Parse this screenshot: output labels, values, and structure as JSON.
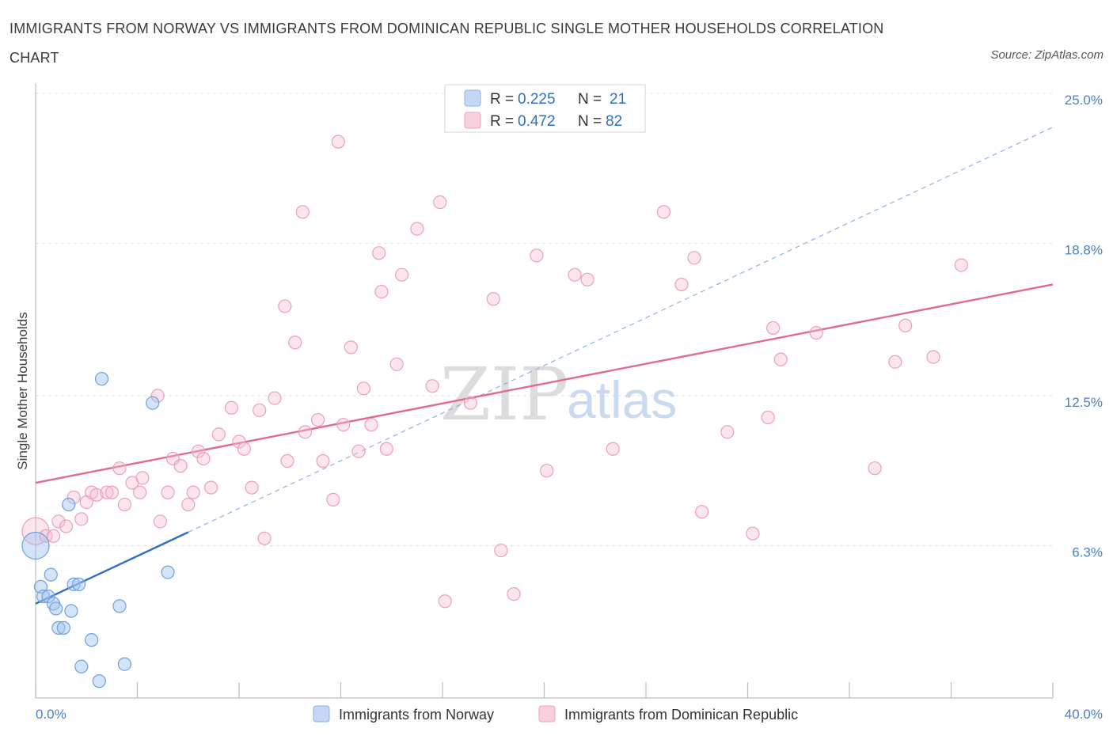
{
  "title": "IMMIGRANTS FROM NORWAY VS IMMIGRANTS FROM DOMINICAN REPUBLIC SINGLE MOTHER HOUSEHOLDS CORRELATION CHART",
  "source": "Source: ZipAtlas.com",
  "watermark": {
    "part1": "ZIP",
    "part2": "atlas"
  },
  "colors": {
    "norway": "#6f9fe0",
    "norway_line": "#2f6ec4",
    "dominican": "#f0a0b8",
    "dominican_line": "#e06a90",
    "tick": "#4a7fc6"
  },
  "legend": {
    "rows": [
      {
        "r_label": "R =",
        "r_value": "0.225",
        "n_label": "N =",
        "n_value": "21"
      },
      {
        "r_label": "R =",
        "r_value": "0.472",
        "n_label": "N =",
        "n_value": "82"
      }
    ]
  },
  "chart_data": {
    "type": "scatter",
    "title": "IMMIGRANTS FROM NORWAY VS IMMIGRANTS FROM DOMINICAN REPUBLIC SINGLE MOTHER HOUSEHOLDS CORRELATION CHART",
    "xlabel": "",
    "ylabel": "Single Mother Households",
    "xlim": [
      0,
      40
    ],
    "ylim": [
      0,
      25
    ],
    "x_tick_labels": [
      "0.0%",
      "40.0%"
    ],
    "y_ticks": [
      6.3,
      12.5,
      18.8,
      25.0
    ],
    "y_tick_labels": [
      "6.3%",
      "12.5%",
      "18.8%",
      "25.0%"
    ],
    "grid": true,
    "legend_position": "top-center",
    "series": [
      {
        "name": "Immigrants from Norway",
        "R": 0.225,
        "N": 21,
        "trend": {
          "x0": 0,
          "y0": 3.9,
          "x1": 40,
          "y1": 23.6,
          "solid_until_x": 6
        },
        "points": [
          [
            0.0,
            6.3
          ],
          [
            0.2,
            4.6
          ],
          [
            0.3,
            4.2
          ],
          [
            0.5,
            4.2
          ],
          [
            0.6,
            5.1
          ],
          [
            0.7,
            3.9
          ],
          [
            0.8,
            3.7
          ],
          [
            0.9,
            2.9
          ],
          [
            1.1,
            2.9
          ],
          [
            1.3,
            8.0
          ],
          [
            1.4,
            3.6
          ],
          [
            1.5,
            4.7
          ],
          [
            1.7,
            4.7
          ],
          [
            1.8,
            1.3
          ],
          [
            2.2,
            2.4
          ],
          [
            2.5,
            0.7
          ],
          [
            2.6,
            13.2
          ],
          [
            3.3,
            3.8
          ],
          [
            3.5,
            1.4
          ],
          [
            4.6,
            12.2
          ],
          [
            5.2,
            5.2
          ]
        ]
      },
      {
        "name": "Immigrants from Dominican Republic",
        "R": 0.472,
        "N": 82,
        "trend": {
          "x0": 0,
          "y0": 8.9,
          "x1": 40,
          "y1": 17.1
        },
        "points": [
          [
            0.0,
            6.9
          ],
          [
            0.4,
            6.7
          ],
          [
            0.7,
            6.7
          ],
          [
            0.9,
            7.3
          ],
          [
            1.2,
            7.1
          ],
          [
            1.5,
            8.3
          ],
          [
            1.8,
            7.4
          ],
          [
            2.0,
            8.1
          ],
          [
            2.2,
            8.5
          ],
          [
            2.4,
            8.4
          ],
          [
            2.8,
            8.5
          ],
          [
            3.0,
            8.5
          ],
          [
            3.3,
            9.5
          ],
          [
            3.5,
            8.0
          ],
          [
            3.8,
            8.9
          ],
          [
            4.1,
            8.5
          ],
          [
            4.2,
            9.1
          ],
          [
            4.8,
            12.5
          ],
          [
            4.9,
            7.3
          ],
          [
            5.2,
            8.5
          ],
          [
            5.4,
            9.9
          ],
          [
            5.7,
            9.6
          ],
          [
            6.0,
            8.0
          ],
          [
            6.2,
            8.5
          ],
          [
            6.4,
            10.2
          ],
          [
            6.6,
            9.9
          ],
          [
            6.9,
            8.7
          ],
          [
            7.2,
            10.9
          ],
          [
            7.7,
            12.0
          ],
          [
            8.0,
            10.6
          ],
          [
            8.2,
            10.3
          ],
          [
            8.5,
            8.7
          ],
          [
            8.8,
            11.9
          ],
          [
            9.0,
            6.6
          ],
          [
            9.4,
            12.4
          ],
          [
            9.8,
            16.2
          ],
          [
            9.9,
            9.8
          ],
          [
            10.2,
            14.7
          ],
          [
            10.6,
            11.0
          ],
          [
            10.5,
            20.1
          ],
          [
            11.1,
            11.5
          ],
          [
            11.3,
            9.8
          ],
          [
            11.7,
            8.2
          ],
          [
            11.9,
            23.0
          ],
          [
            12.1,
            11.3
          ],
          [
            12.4,
            14.5
          ],
          [
            12.7,
            10.2
          ],
          [
            12.9,
            12.8
          ],
          [
            13.2,
            11.3
          ],
          [
            13.5,
            18.4
          ],
          [
            13.6,
            16.8
          ],
          [
            13.8,
            10.3
          ],
          [
            14.2,
            13.8
          ],
          [
            14.4,
            17.5
          ],
          [
            15.0,
            19.4
          ],
          [
            15.6,
            12.9
          ],
          [
            15.9,
            20.5
          ],
          [
            16.1,
            4.0
          ],
          [
            17.1,
            12.2
          ],
          [
            18.0,
            16.5
          ],
          [
            18.3,
            6.1
          ],
          [
            18.8,
            4.3
          ],
          [
            19.7,
            18.3
          ],
          [
            20.1,
            9.4
          ],
          [
            21.2,
            17.5
          ],
          [
            21.7,
            17.3
          ],
          [
            22.7,
            10.3
          ],
          [
            24.7,
            20.1
          ],
          [
            25.4,
            17.1
          ],
          [
            25.9,
            18.2
          ],
          [
            26.2,
            7.7
          ],
          [
            27.2,
            11.0
          ],
          [
            28.2,
            6.8
          ],
          [
            28.8,
            11.6
          ],
          [
            29.0,
            15.3
          ],
          [
            29.3,
            14.0
          ],
          [
            30.7,
            15.1
          ],
          [
            33.0,
            9.5
          ],
          [
            33.8,
            13.9
          ],
          [
            34.2,
            15.4
          ],
          [
            35.3,
            14.1
          ],
          [
            36.4,
            17.9
          ]
        ]
      }
    ]
  }
}
